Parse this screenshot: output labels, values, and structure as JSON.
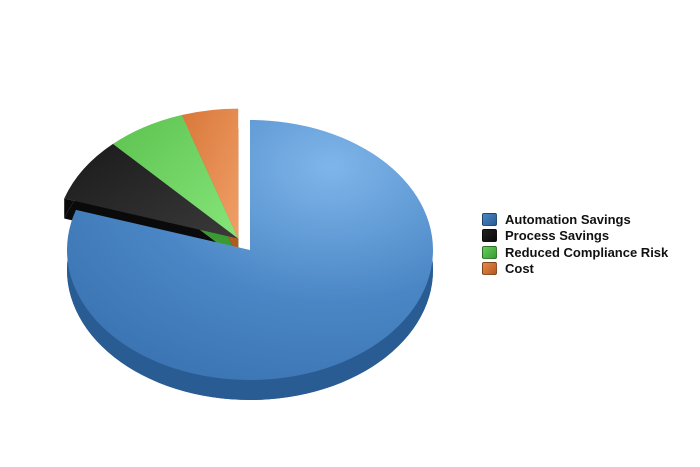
{
  "chart_data": {
    "type": "pie",
    "title": "",
    "style": "3d-exploded",
    "legend_position": "right",
    "slices": [
      {
        "label": "Automation Savings",
        "value": 80,
        "color": "#4a86c5",
        "side_color": "#2a5c94"
      },
      {
        "label": "Process Savings",
        "value": 8,
        "color": "#222222",
        "side_color": "#0a0a0a"
      },
      {
        "label": "Reduced Compliance Risk",
        "value": 7,
        "color": "#66d05a",
        "side_color": "#3b9a34"
      },
      {
        "label": "Cost",
        "value": 5,
        "color": "#e8884a",
        "side_color": "#b35a22"
      }
    ]
  }
}
